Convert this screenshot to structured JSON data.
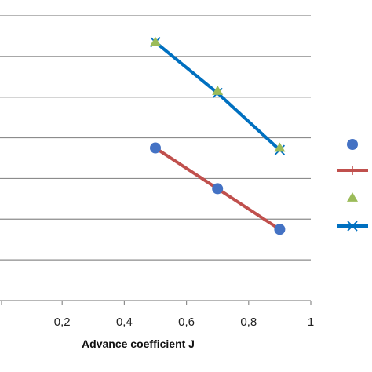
{
  "chart_data": {
    "type": "scatter",
    "xlabel": "Advance coefficient J",
    "ylabel": "",
    "xlim": [
      0.0,
      1.0
    ],
    "x_ticks": [
      "0,2",
      "0,4",
      "0,6",
      "0,8",
      "1"
    ],
    "x_tick_values": [
      0.2,
      0.4,
      0.6,
      0.8,
      1.0
    ],
    "ylim": [
      0,
      7
    ],
    "y_gridlines": [
      1,
      2,
      3,
      4,
      5,
      6,
      7
    ],
    "grid": true,
    "legend": "right",
    "series": [
      {
        "color": "#4472c4",
        "marker": "circle",
        "line": false,
        "x": [
          0.5,
          0.7,
          0.9
        ],
        "y": [
          3.75,
          2.75,
          1.75
        ]
      },
      {
        "color": "#c0504d",
        "marker": "plus",
        "line": true,
        "x": [
          0.5,
          0.7,
          0.9
        ],
        "y": [
          3.75,
          2.75,
          1.75
        ]
      },
      {
        "color": "#9bbb59",
        "marker": "triangle",
        "line": false,
        "x": [
          0.5,
          0.7,
          0.9
        ],
        "y": [
          6.35,
          5.15,
          3.75
        ]
      },
      {
        "color": "#0070c0",
        "marker": "cross",
        "line": true,
        "x": [
          0.5,
          0.7,
          0.9
        ],
        "y": [
          6.35,
          5.1,
          3.7
        ]
      }
    ]
  }
}
